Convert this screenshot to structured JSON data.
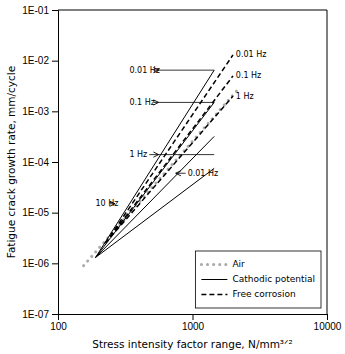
{
  "chart_data": {
    "type": "line",
    "xlabel": "Stress intensity factor range, N/mm³ᐟ²",
    "ylabel": "Fatigue crack growth rate, mm/cycle",
    "log": true,
    "xlim": [
      100,
      10000
    ],
    "ylim": [
      1e-07,
      0.1
    ],
    "xticks": [
      100,
      1000,
      10000
    ],
    "yticks": [
      {
        "value": 1e-07,
        "label": "1E-07"
      },
      {
        "value": 1e-06,
        "label": "1E-06"
      },
      {
        "value": 1e-05,
        "label": "1E-05"
      },
      {
        "value": 0.0001,
        "label": "1E-04"
      },
      {
        "value": 0.001,
        "label": "1E-03"
      },
      {
        "value": 0.01,
        "label": "1E-02"
      },
      {
        "value": 0.1,
        "label": "1E-01"
      }
    ],
    "grid": false,
    "legend": "lower right",
    "series": [
      {
        "name": "Air",
        "color": "#aaaaaa",
        "line_style": "dotted",
        "x": [
          155,
          2200
        ],
        "values": [
          9e-07,
          0.0028
        ]
      },
      {
        "name": "Cathodic potential",
        "color": "#000000",
        "line_style": "solid",
        "x": [
          190,
          1450,
          null,
          190,
          1450,
          null,
          190,
          1450,
          null,
          190,
          1450
        ],
        "values": [
          1.3e-06,
          0.0065,
          null,
          1.3e-06,
          0.0015,
          null,
          1.3e-06,
          0.00032,
          null,
          1.3e-06,
          7.5e-05
        ]
      },
      {
        "name": "Free corrosion",
        "color": "#000000",
        "line_style": "dashed",
        "x": [
          225,
          2000,
          null,
          225,
          2000,
          null,
          225,
          2000
        ],
        "values": [
          2.5e-06,
          0.013,
          null,
          2.5e-06,
          0.005,
          null,
          2.5e-06,
          0.002
        ]
      }
    ],
    "connectors": [
      {
        "x": [
          560,
          1450
        ],
        "y": 0.0065
      },
      {
        "x": [
          560,
          1450
        ],
        "y": 0.0015
      },
      {
        "x": [
          560,
          1450
        ],
        "y": 0.00014
      }
    ],
    "annotations": [
      {
        "text": "0.01 Hz",
        "x": 340,
        "y": 0.0065,
        "arrow_x": 560,
        "arrow_y": 0.0065
      },
      {
        "text": "0.1 Hz",
        "x": 340,
        "y": 0.0015,
        "arrow_x": 560,
        "arrow_y": 0.0015
      },
      {
        "text": "1 Hz",
        "x": 340,
        "y": 0.00014,
        "arrow_x": 560,
        "arrow_y": 0.00014
      },
      {
        "text": "10 Hz",
        "x": 190,
        "y": 1.5e-05,
        "arrow_x": 265,
        "arrow_y": 1.5e-05
      },
      {
        "text": "0.01 Hz",
        "x": 2100,
        "y": 0.013
      },
      {
        "text": "0.1 Hz",
        "x": 2100,
        "y": 0.005
      },
      {
        "text": "1 Hz",
        "x": 2100,
        "y": 0.002
      },
      {
        "text": "0.01 Hz",
        "x": 920,
        "y": 6e-05,
        "arrow_x": 750,
        "arrow_y": 6e-05
      }
    ]
  }
}
